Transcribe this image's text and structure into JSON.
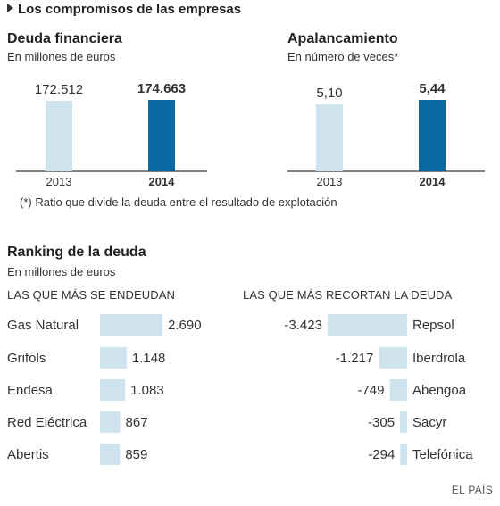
{
  "main_title": "Los compromisos de las empresas",
  "footnote": "(*) Ratio que divide la deuda entre el resultado de explotación",
  "credit": "EL PAÍS",
  "colors": {
    "light": "#cfe3ee",
    "dark": "#0b6aa1",
    "axis": "#333333"
  },
  "chart_data": [
    {
      "type": "bar",
      "title": "Deuda financiera",
      "subtitle": "En millones de euros",
      "categories": [
        "2013",
        "2014"
      ],
      "values": [
        172512,
        174663
      ],
      "value_labels": [
        "172.512",
        "174.663"
      ],
      "highlight": "2014",
      "ylim": [
        0,
        174663
      ]
    },
    {
      "type": "bar",
      "title": "Apalancamiento",
      "subtitle": "En número de veces*",
      "categories": [
        "2013",
        "2014"
      ],
      "values": [
        5.1,
        5.44
      ],
      "value_labels": [
        "5,10",
        "5,44"
      ],
      "highlight": "2014",
      "ylim": [
        0,
        5.44
      ]
    },
    {
      "type": "bar",
      "orientation": "horizontal",
      "title": "Ranking de la deuda",
      "subtitle": "En millones de euros",
      "column_title": "LAS QUE MÁS SE ENDEUDAN",
      "categories": [
        "Gas Natural",
        "Grifols",
        "Endesa",
        "Red Eléctrica",
        "Abertis"
      ],
      "values": [
        2690,
        1148,
        1083,
        867,
        859
      ],
      "value_labels": [
        "2.690",
        "1.148",
        "1.083",
        "867",
        "859"
      ]
    },
    {
      "type": "bar",
      "orientation": "horizontal",
      "column_title": "LAS QUE MÁS RECORTAN LA DEUDA",
      "categories": [
        "Repsol",
        "Iberdrola",
        "Abengoa",
        "Sacyr",
        "Telefónica"
      ],
      "values": [
        -3423,
        -1217,
        -749,
        -305,
        -294
      ],
      "value_labels": [
        "-3.423",
        "-1.217",
        "-749",
        "-305",
        "-294"
      ]
    }
  ]
}
